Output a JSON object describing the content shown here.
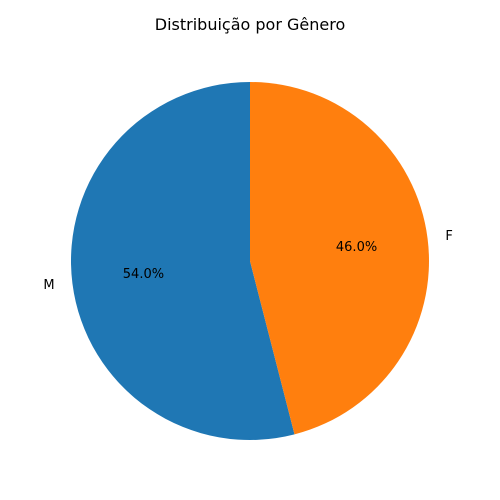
{
  "chart_data": {
    "type": "pie",
    "title": "Distribuição por Gênero",
    "start_angle_deg": 90,
    "direction": "counterclockwise",
    "slices": [
      {
        "label": "M",
        "value": 54.0,
        "pct_label": "54.0%",
        "color": "#1f77b4"
      },
      {
        "label": "F",
        "value": 46.0,
        "pct_label": "46.0%",
        "color": "#ff7f0e"
      }
    ]
  }
}
